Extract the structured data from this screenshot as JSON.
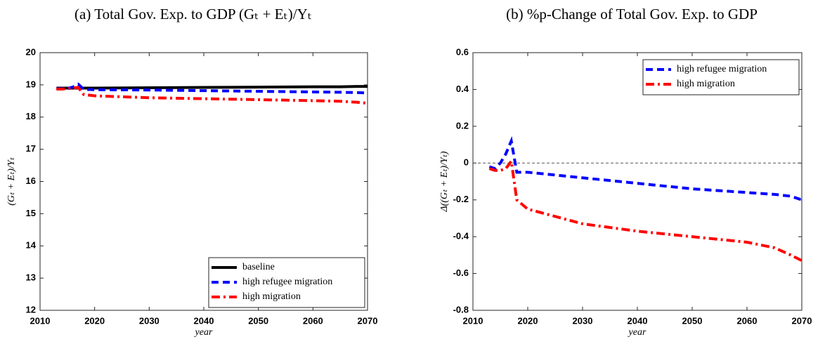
{
  "chart_data": [
    {
      "type": "line",
      "title": "(a) Total Gov. Exp. to GDP (Gₜ + Eₜ)/Yₜ",
      "x_label": "year",
      "y_label": "(Gₜ + Eₜ)/Yₜ",
      "x": [
        2013,
        2014,
        2015,
        2016,
        2017,
        2018,
        2020,
        2030,
        2040,
        2050,
        2060,
        2065,
        2068,
        2070
      ],
      "series": [
        {
          "name": "baseline",
          "color": "#000000",
          "dash": "solid",
          "values": [
            18.9,
            18.9,
            18.9,
            18.9,
            18.9,
            18.9,
            18.9,
            18.91,
            18.92,
            18.93,
            18.94,
            18.94,
            18.95,
            18.95
          ]
        },
        {
          "name": "high refugee migration",
          "color": "#0000ff",
          "dash": "dashed",
          "values": [
            18.88,
            18.88,
            18.89,
            18.93,
            19.02,
            18.86,
            18.85,
            18.84,
            18.82,
            18.8,
            18.78,
            18.77,
            18.76,
            18.75
          ]
        },
        {
          "name": "high migration",
          "color": "#ff0000",
          "dash": "dashdot",
          "values": [
            18.87,
            18.87,
            18.88,
            18.9,
            18.92,
            18.7,
            18.66,
            18.6,
            18.57,
            18.54,
            18.51,
            18.49,
            18.46,
            18.43
          ]
        }
      ],
      "xlim": [
        2010,
        2070
      ],
      "xticks": [
        2010,
        2020,
        2030,
        2040,
        2050,
        2060,
        2070
      ],
      "ylim": [
        12,
        20
      ],
      "yticks": [
        12,
        13,
        14,
        15,
        16,
        17,
        18,
        19,
        20
      ],
      "legend": "southeast"
    },
    {
      "type": "line",
      "title": "(b) %p-Change of Total Gov. Exp. to GDP",
      "x_label": "year",
      "y_label": "Δ((Gₜ + Eₜ)/Yₜ)",
      "x": [
        2013,
        2014,
        2015,
        2016,
        2017,
        2018,
        2020,
        2030,
        2040,
        2050,
        2060,
        2065,
        2068,
        2070
      ],
      "series": [
        {
          "name": "high refugee migration",
          "color": "#0000ff",
          "dash": "dashed",
          "values": [
            -0.02,
            -0.03,
            0,
            0.05,
            0.12,
            -0.05,
            -0.05,
            -0.08,
            -0.11,
            -0.14,
            -0.16,
            -0.17,
            -0.18,
            -0.2
          ]
        },
        {
          "name": "high migration",
          "color": "#ff0000",
          "dash": "dashdot",
          "values": [
            -0.03,
            -0.04,
            -0.04,
            -0.03,
            0.01,
            -0.2,
            -0.25,
            -0.33,
            -0.37,
            -0.4,
            -0.43,
            -0.46,
            -0.5,
            -0.53
          ]
        }
      ],
      "xlim": [
        2010,
        2070
      ],
      "xticks": [
        2010,
        2020,
        2030,
        2040,
        2050,
        2060,
        2070
      ],
      "ylim": [
        -0.8,
        0.6
      ],
      "yticks": [
        -0.8,
        -0.6,
        -0.4,
        -0.2,
        0,
        0.2,
        0.4,
        0.6
      ],
      "reference_line": 0,
      "legend": "northeast"
    }
  ]
}
